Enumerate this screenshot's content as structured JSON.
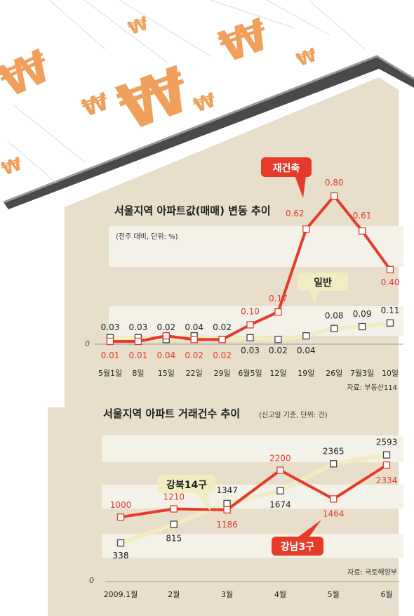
{
  "colors": {
    "red": "#e63a2a",
    "cream": "#f1ecc2",
    "house_wall": "#e7dfcb",
    "band": "#f4f1e8",
    "roof_dark": "#4a4a4a",
    "roof_edge": "#9a9a9a",
    "coin": "#f0a05a"
  },
  "decor": {
    "currency_glyph": "₩"
  },
  "chart_data": [
    {
      "type": "line",
      "title": "서울지역 아파트값(매매) 변동 추이",
      "subtitle": "(전주 대비, 단위: %)",
      "source": "자료: 부동산114",
      "zero_label": "0",
      "categories": [
        "5월1일",
        "8일",
        "15일",
        "22일",
        "29일",
        "6월5일",
        "12일",
        "19일",
        "26일",
        "7월3일",
        "10일"
      ],
      "series": [
        {
          "name": "재건축",
          "color": "#e63a2a",
          "values": [
            0.01,
            0.01,
            0.04,
            0.02,
            0.02,
            0.1,
            0.17,
            0.62,
            0.8,
            0.61,
            0.4
          ],
          "labels": [
            "0.01",
            "0.01",
            "0.04",
            "0.02",
            "0.02",
            "0.10",
            "0.17",
            "0.62",
            "0.80",
            "0.61",
            "0.40"
          ]
        },
        {
          "name": "일반",
          "color": "#f1ecc2",
          "values": [
            0.03,
            0.03,
            0.02,
            0.04,
            0.02,
            0.03,
            0.02,
            0.04,
            0.08,
            0.09,
            0.11
          ],
          "labels": [
            "0.03",
            "0.03",
            "0.02",
            "0.04",
            "0.02",
            "0.03",
            "0.02",
            "0.04",
            "0.08",
            "0.09",
            "0.11"
          ]
        }
      ]
    },
    {
      "type": "line",
      "title": "서울지역 아파트 거래건수 추이",
      "subtitle": "(신고일 기준, 단위: 건)",
      "source": "자료: 국토해양부",
      "zero_label": "0",
      "categories": [
        "2009.1월",
        "2월",
        "3월",
        "4월",
        "5월",
        "6월"
      ],
      "series": [
        {
          "name": "강남3구",
          "color": "#e63a2a",
          "values": [
            1000,
            1210,
            1186,
            2200,
            1464,
            2334
          ],
          "labels": [
            "1000",
            "1210",
            "1186",
            "2200",
            "1464",
            "2334"
          ]
        },
        {
          "name": "강북14구",
          "color": "#f1ecc2",
          "values": [
            338,
            815,
            1347,
            1674,
            2365,
            2593
          ],
          "labels": [
            "338",
            "815",
            "1347",
            "1674",
            "2365",
            "2593"
          ]
        }
      ]
    }
  ]
}
